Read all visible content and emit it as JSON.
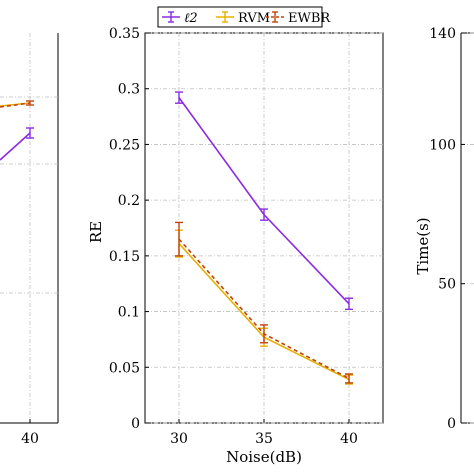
{
  "legend": {
    "items": [
      {
        "label": "ℓ2",
        "color": "#8a2be2",
        "style": "solid"
      },
      {
        "label": "RVM",
        "color": "#e8b000",
        "style": "solid"
      },
      {
        "label": "EWBR",
        "color": "#c1440e",
        "style": "dashed"
      }
    ],
    "placement": "top-center"
  },
  "chart_data": [
    {
      "type": "line",
      "panel": "left",
      "xlabel": "",
      "ylabel": "",
      "x_ticks": [
        "40"
      ],
      "grid": true,
      "series": [
        {
          "name": "ℓ2",
          "x": [
            40
          ],
          "y": [
            0.26
          ],
          "err": [
            0.006
          ]
        },
        {
          "name": "EWBR",
          "x": [
            40
          ],
          "y": [
            0.3
          ],
          "err": [
            0.003
          ]
        }
      ]
    },
    {
      "type": "line",
      "panel": "center",
      "xlabel": "Noise(dB)",
      "ylabel": "RE",
      "x": [
        30,
        35,
        40
      ],
      "x_ticks": [
        "30",
        "35",
        "40"
      ],
      "y_ticks": [
        "0",
        "0.05",
        "0.1",
        "0.15",
        "0.2",
        "0.25",
        "0.3",
        "0.35"
      ],
      "xlim": [
        28,
        42
      ],
      "ylim": [
        0,
        0.35
      ],
      "grid": true,
      "series": [
        {
          "name": "ℓ2",
          "color": "#8a2be2",
          "y": [
            0.292,
            0.187,
            0.107
          ],
          "err": [
            0.005,
            0.005,
            0.005
          ],
          "dashed": false
        },
        {
          "name": "RVM",
          "color": "#e8b000",
          "y": [
            0.161,
            0.077,
            0.039
          ],
          "err": [
            0.012,
            0.008,
            0.004
          ],
          "dashed": false
        },
        {
          "name": "EWBR",
          "color": "#c1440e",
          "y": [
            0.165,
            0.08,
            0.04
          ],
          "err": [
            0.015,
            0.008,
            0.004
          ],
          "dashed": true
        }
      ]
    },
    {
      "type": "line",
      "panel": "right",
      "xlabel": "",
      "ylabel": "Time(s)",
      "y_ticks": [
        "0",
        "50",
        "100",
        "140"
      ],
      "ylim": [
        0,
        140
      ],
      "grid": true,
      "series": []
    }
  ]
}
